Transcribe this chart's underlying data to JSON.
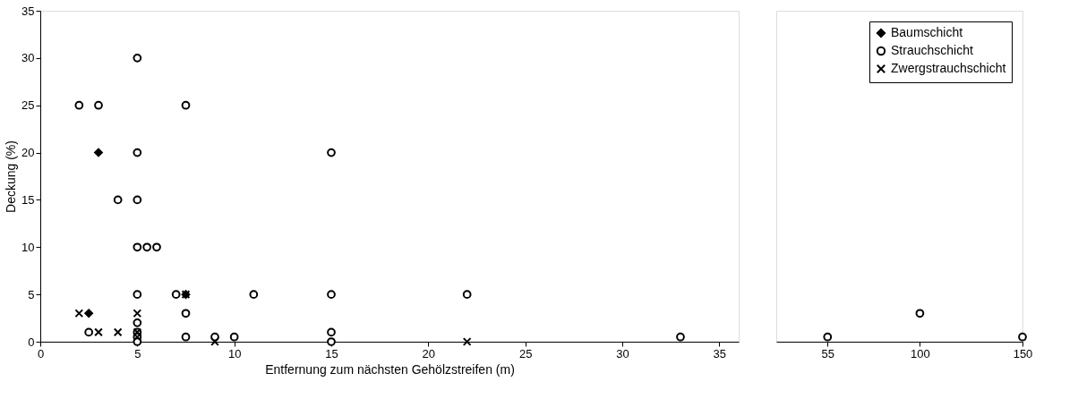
{
  "chart_data": [
    {
      "type": "scatter",
      "xlabel": "Entfernung zum nächsten Gehölzstreifen (m)",
      "ylabel": "Deckung (%)",
      "xlim": [
        0,
        36
      ],
      "xticks": [
        0,
        5,
        10,
        15,
        20,
        25,
        30,
        35
      ],
      "ylim": [
        0,
        35
      ],
      "yticks": [
        0,
        5,
        10,
        15,
        20,
        25,
        30,
        35
      ],
      "grid": false,
      "legend": "top right",
      "series": [
        {
          "name": "Baumschicht",
          "color": "#000000",
          "marker": "diamond",
          "x": [
            3,
            2.5,
            7.5
          ],
          "values": [
            20,
            3,
            5
          ]
        },
        {
          "name": "Strauchschicht",
          "color": "#000000",
          "marker": "circle",
          "x": [
            5,
            2,
            3,
            7.5,
            5,
            4,
            5,
            5,
            5.5,
            6,
            5,
            7,
            11,
            7.5,
            2.5,
            5,
            5,
            5,
            5,
            7.5,
            9,
            10,
            15,
            15,
            15,
            15,
            22,
            33
          ],
          "values": [
            30,
            25,
            25,
            25,
            20,
            15,
            15,
            10,
            10,
            10,
            5,
            5,
            5,
            3,
            1,
            2,
            1,
            0.5,
            0,
            0.5,
            0.5,
            0.5,
            20,
            5,
            1,
            0,
            5,
            0.5
          ]
        },
        {
          "name": "Zwergstrauchschicht",
          "color": "#000000",
          "marker": "cross",
          "x": [
            2,
            3,
            4,
            5,
            5,
            5,
            7.5,
            9,
            22
          ],
          "values": [
            3,
            1,
            1,
            3,
            1,
            0.5,
            5,
            0,
            0
          ]
        }
      ]
    },
    {
      "type": "scatter",
      "xlim": [
        30,
        150
      ],
      "xticks": [
        55,
        100,
        150
      ],
      "ylim": [
        0,
        35
      ],
      "yticks": [
        0,
        5,
        10,
        15,
        20,
        25,
        30,
        35
      ],
      "tick_labels": "x",
      "grid": false,
      "series": [
        {
          "color": "#000000",
          "marker": "circle",
          "x": [
            55,
            100,
            150
          ],
          "values": [
            0.5,
            3,
            0.5
          ]
        }
      ]
    }
  ]
}
